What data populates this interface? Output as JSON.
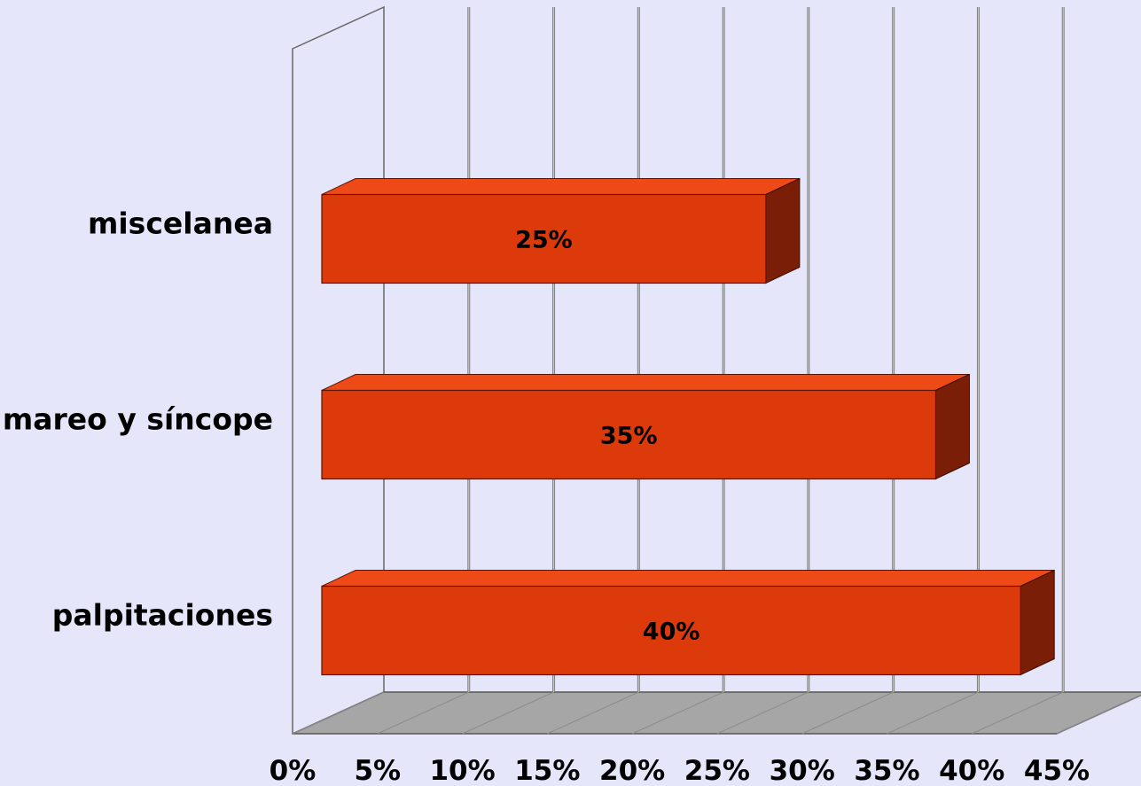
{
  "chart_data": {
    "type": "bar",
    "orientation": "horizontal",
    "three_d": true,
    "categories": [
      "miscelanea",
      "mareo y síncope",
      "palpitaciones"
    ],
    "values": [
      25,
      35,
      40
    ],
    "data_labels": [
      "25%",
      "35%",
      "40%"
    ],
    "xlim": [
      0,
      45
    ],
    "x_ticks": [
      0,
      5,
      10,
      15,
      20,
      25,
      30,
      35,
      40,
      45
    ],
    "x_tick_labels": [
      "0%",
      "5%",
      "10%",
      "15%",
      "20%",
      "25%",
      "30%",
      "35%",
      "40%",
      "45%"
    ],
    "grid": true,
    "legend": "none",
    "colors": {
      "background": "#e6e6fa",
      "bar_front": "#dd3a0c",
      "bar_top": "#ee4a18",
      "bar_side": "#7a1e08",
      "floor": "#a6a6a6",
      "gridline": "#808080"
    }
  }
}
